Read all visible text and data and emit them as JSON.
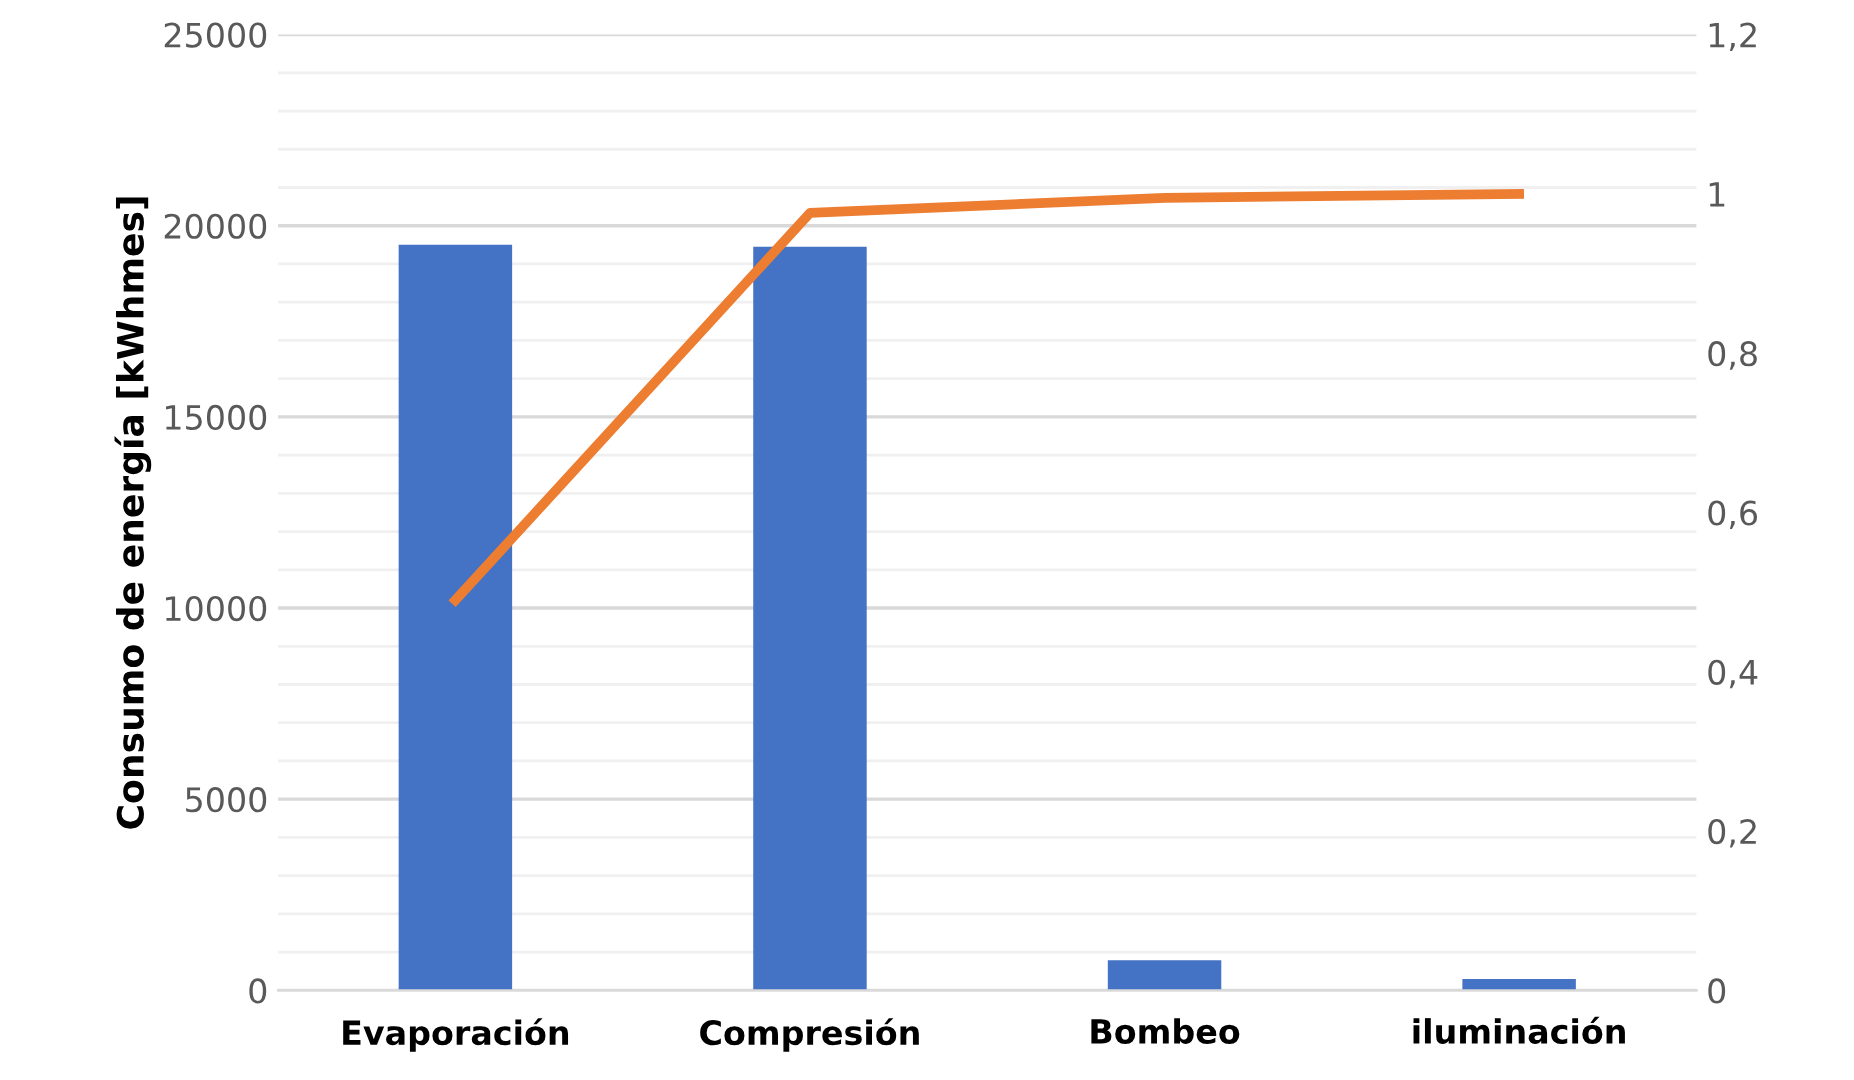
{
  "chart_data": {
    "type": "bar",
    "ylabel": "Consumo de energía [kWhmes]",
    "categories": [
      "Evaporación",
      "Compresión",
      "Bombeo",
      "iluminación"
    ],
    "series": [
      {
        "color": "#4472c4",
        "values": [
          19500,
          19450,
          790,
          300
        ]
      },
      {
        "type": "line",
        "axis": "y2",
        "color": "#ed7d31",
        "values": [
          0.49,
          0.976,
          0.995,
          1.0
        ]
      }
    ],
    "ylim": [
      0,
      25000
    ],
    "yticks": [
      0,
      5000,
      10000,
      15000,
      20000,
      25000
    ],
    "y2lim": [
      0,
      1.2
    ],
    "y2ticks": [
      {
        "value": 0,
        "label": "0"
      },
      {
        "value": 0.2,
        "label": "0,2"
      },
      {
        "value": 0.4,
        "label": "0,4"
      },
      {
        "value": 0.6,
        "label": "0,6"
      },
      {
        "value": 0.8,
        "label": "0,8"
      },
      {
        "value": 1,
        "label": "1"
      },
      {
        "value": 1.2,
        "label": "1,2"
      }
    ],
    "grid": "y",
    "marker": "none",
    "line_style": "solid"
  }
}
